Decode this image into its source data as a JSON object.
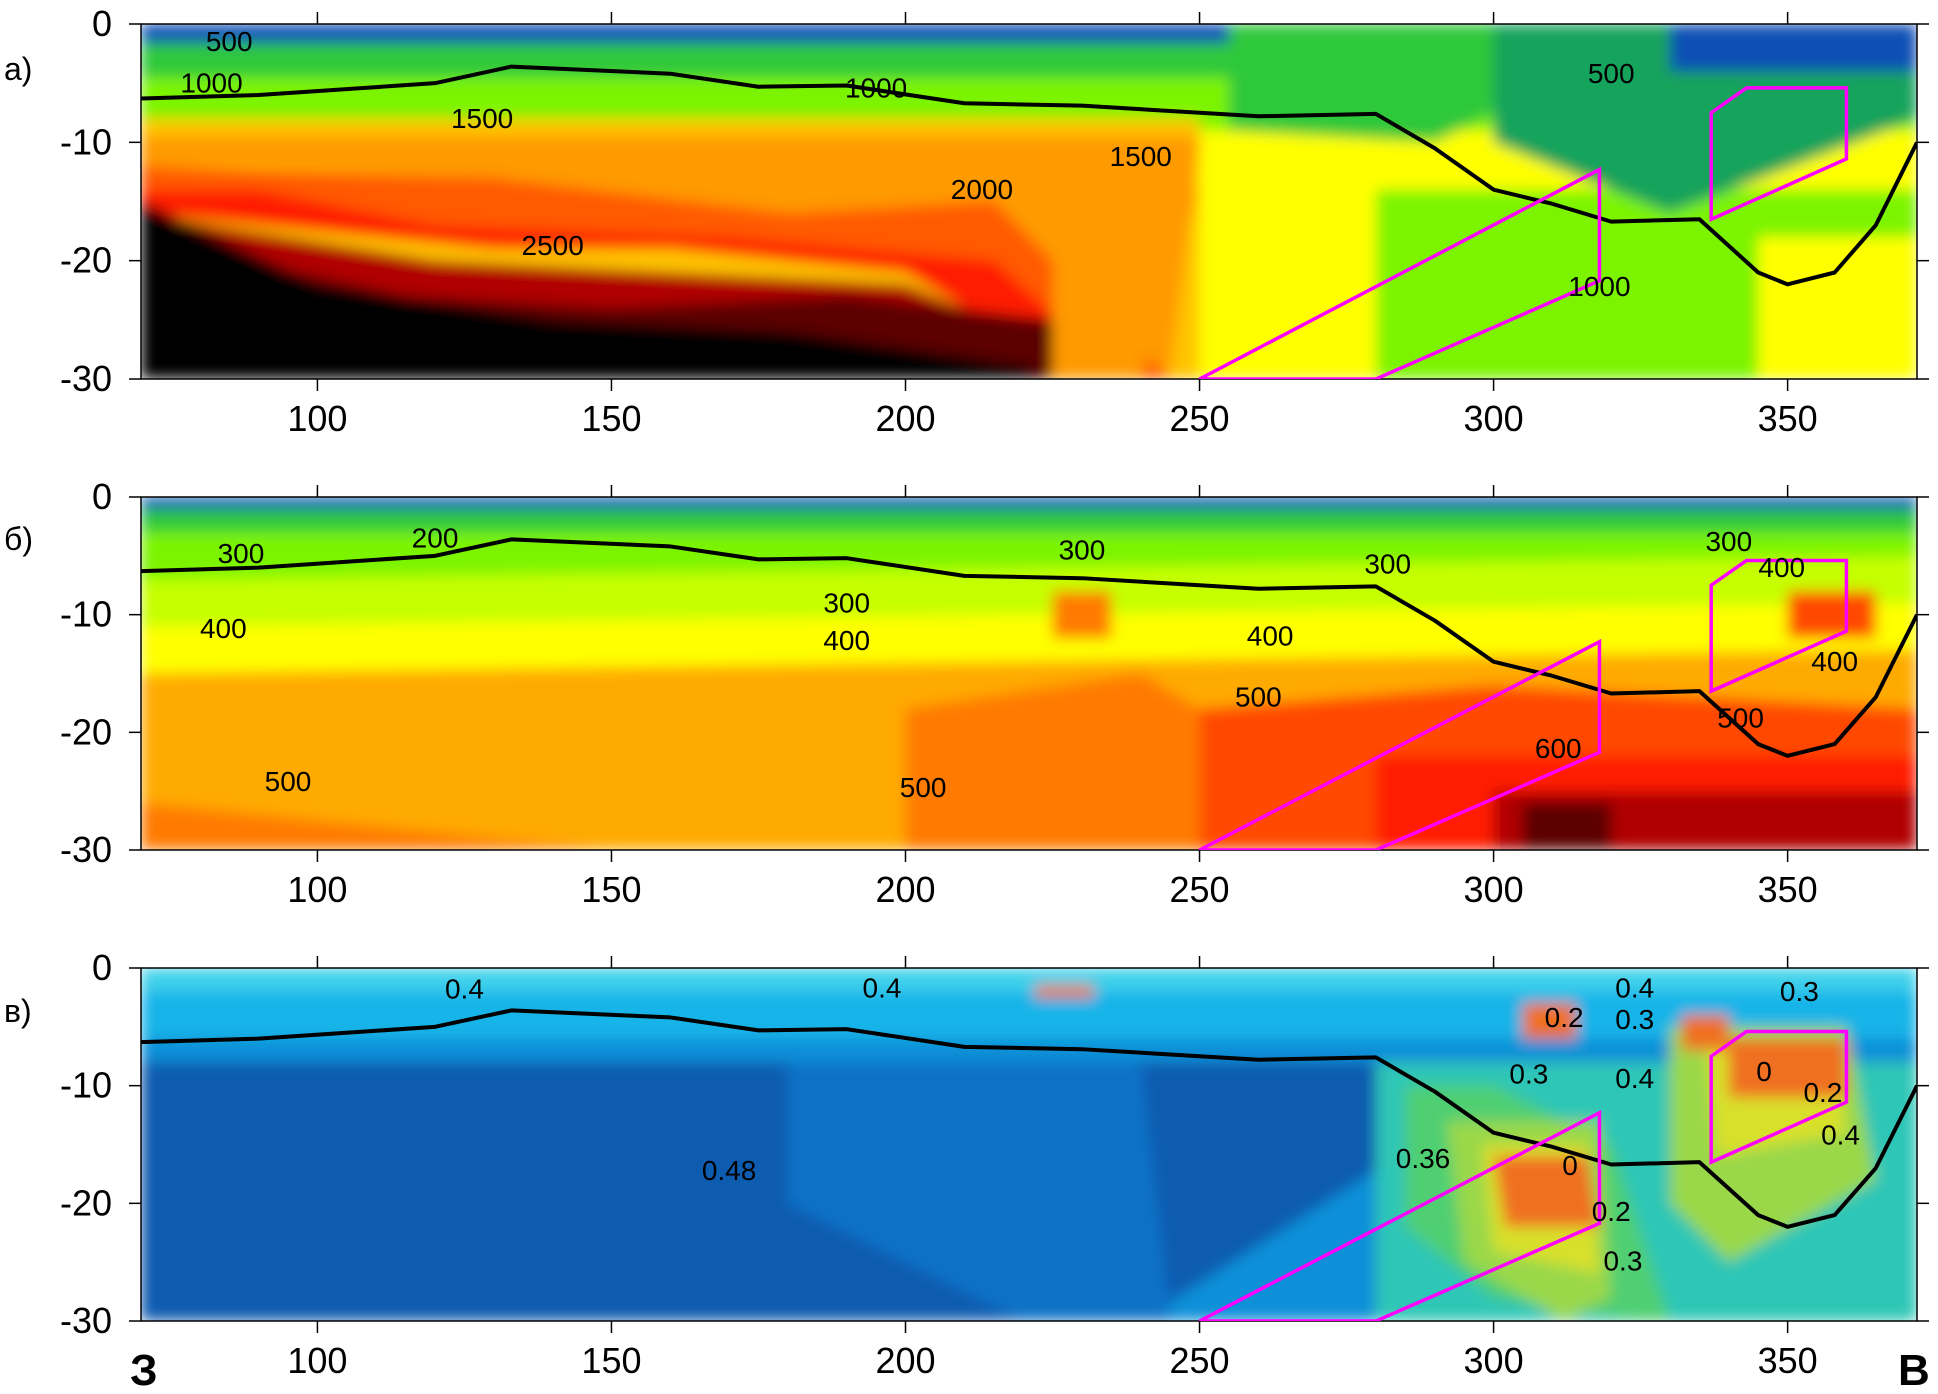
{
  "chart_data": [
    {
      "type": "heatmap",
      "panel_label": "а)",
      "xlim": [
        70,
        372
      ],
      "ylim": [
        -30,
        0
      ],
      "xticks": [
        100,
        150,
        200,
        250,
        300,
        350
      ],
      "yticks": [
        0,
        -10,
        -20,
        -30
      ],
      "contour_labels": [
        {
          "text": "500",
          "x": 85,
          "y": -2.3
        },
        {
          "text": "1000",
          "x": 82,
          "y": -5.8
        },
        {
          "text": "1500",
          "x": 128,
          "y": -8.8
        },
        {
          "text": "2500",
          "x": 140,
          "y": -19.5
        },
        {
          "text": "2000",
          "x": 213,
          "y": -14.8
        },
        {
          "text": "1000",
          "x": 195,
          "y": -6.2
        },
        {
          "text": "1500",
          "x": 240,
          "y": -12
        },
        {
          "text": "500",
          "x": 320,
          "y": -5
        },
        {
          "text": "1000",
          "x": 318,
          "y": -23
        }
      ],
      "color_scale": [
        "#0a4fb5",
        "#18a35c",
        "#2fc83a",
        "#7cf400",
        "#c5ff00",
        "#ffff00",
        "#ffc400",
        "#ff9a00",
        "#ff5a00",
        "#ff1a00",
        "#b00000",
        "#5c0000",
        "#000000"
      ],
      "boundary_line": {
        "x": [
          70,
          90,
          120,
          133,
          160,
          175,
          190,
          210,
          230,
          260,
          280,
          290,
          300,
          310,
          320,
          335,
          345,
          350,
          358,
          365,
          372
        ],
        "y": [
          -6.3,
          -6,
          -5,
          -3.6,
          -4.2,
          -5.3,
          -5.2,
          -6.7,
          -6.9,
          -7.8,
          -7.6,
          -10.5,
          -14,
          -15.2,
          -16.7,
          -16.5,
          -21,
          -22,
          -21,
          -17,
          -10
        ]
      },
      "polygons": [
        {
          "x": [
            250,
            318,
            318,
            280
          ],
          "y": [
            -30,
            -12.3,
            -21.7,
            -30
          ]
        },
        {
          "x": [
            337,
            343,
            360,
            360,
            337
          ],
          "y": [
            -7.5,
            -5.4,
            -5.4,
            -11.4,
            -16.5
          ]
        }
      ]
    },
    {
      "type": "heatmap",
      "panel_label": "б)",
      "xlim": [
        70,
        372
      ],
      "ylim": [
        -30,
        0
      ],
      "xticks": [
        100,
        150,
        200,
        250,
        300,
        350
      ],
      "yticks": [
        0,
        -10,
        -20,
        -30
      ],
      "contour_labels": [
        {
          "text": "300",
          "x": 87,
          "y": -5.6
        },
        {
          "text": "200",
          "x": 120,
          "y": -4.3
        },
        {
          "text": "400",
          "x": 84,
          "y": -12
        },
        {
          "text": "500",
          "x": 95,
          "y": -25
        },
        {
          "text": "300",
          "x": 190,
          "y": -9.8
        },
        {
          "text": "400",
          "x": 190,
          "y": -13
        },
        {
          "text": "500",
          "x": 203,
          "y": -25.5
        },
        {
          "text": "300",
          "x": 230,
          "y": -5.3
        },
        {
          "text": "400",
          "x": 262,
          "y": -12.6
        },
        {
          "text": "500",
          "x": 260,
          "y": -17.8
        },
        {
          "text": "300",
          "x": 282,
          "y": -6.5
        },
        {
          "text": "600",
          "x": 311,
          "y": -22.2
        },
        {
          "text": "300",
          "x": 340,
          "y": -4.6
        },
        {
          "text": "400",
          "x": 349,
          "y": -6.8
        },
        {
          "text": "400",
          "x": 358,
          "y": -14.8
        },
        {
          "text": "500",
          "x": 342,
          "y": -19.6
        }
      ],
      "color_scale": [
        "#0a4fb5",
        "#18a35c",
        "#2fc83a",
        "#7cf400",
        "#c5ff00",
        "#ffff00",
        "#ffc400",
        "#ffaa00",
        "#ff7a00",
        "#ff4a00",
        "#ff1a00",
        "#b00000",
        "#5c0000"
      ],
      "boundary_line": {
        "x": [
          70,
          90,
          120,
          133,
          160,
          175,
          190,
          210,
          230,
          260,
          280,
          290,
          300,
          310,
          320,
          335,
          345,
          350,
          358,
          365,
          372
        ],
        "y": [
          -6.3,
          -6,
          -5,
          -3.6,
          -4.2,
          -5.3,
          -5.2,
          -6.7,
          -6.9,
          -7.8,
          -7.6,
          -10.5,
          -14,
          -15.2,
          -16.7,
          -16.5,
          -21,
          -22,
          -21,
          -17,
          -10
        ]
      },
      "polygons": [
        {
          "x": [
            250,
            318,
            318,
            280
          ],
          "y": [
            -30,
            -12.3,
            -21.7,
            -30
          ]
        },
        {
          "x": [
            337,
            343,
            360,
            360,
            337
          ],
          "y": [
            -7.5,
            -5.4,
            -5.4,
            -11.4,
            -16.5
          ]
        }
      ]
    },
    {
      "type": "heatmap",
      "panel_label": "в)",
      "xlim": [
        70,
        372
      ],
      "ylim": [
        -30,
        0
      ],
      "xticks": [
        100,
        150,
        200,
        250,
        300,
        350
      ],
      "yticks": [
        0,
        -10,
        -20,
        -30
      ],
      "contour_labels": [
        {
          "text": "0.4",
          "x": 125,
          "y": -2.6
        },
        {
          "text": "0.4",
          "x": 196,
          "y": -2.5
        },
        {
          "text": "0.48",
          "x": 170,
          "y": -18
        },
        {
          "text": "0.36",
          "x": 288,
          "y": -17
        },
        {
          "text": "0.3",
          "x": 306,
          "y": -9.8
        },
        {
          "text": "0.2",
          "x": 312,
          "y": -5
        },
        {
          "text": "0.3",
          "x": 324,
          "y": -5.2
        },
        {
          "text": "0.4",
          "x": 324,
          "y": -2.5
        },
        {
          "text": "0.4",
          "x": 324,
          "y": -10.2
        },
        {
          "text": "0",
          "x": 313,
          "y": -17.6
        },
        {
          "text": "0.2",
          "x": 320,
          "y": -21.5
        },
        {
          "text": "0.3",
          "x": 322,
          "y": -25.7
        },
        {
          "text": "0.3",
          "x": 352,
          "y": -2.8
        },
        {
          "text": "0",
          "x": 346,
          "y": -9.6
        },
        {
          "text": "0.2",
          "x": 356,
          "y": -11.4
        },
        {
          "text": "0.4",
          "x": 359,
          "y": -15
        }
      ],
      "color_scale": [
        "#0b5cb0",
        "#0a72c6",
        "#0990d8",
        "#12b4e8",
        "#3cd0ea",
        "#2dc6b6",
        "#4fcf72",
        "#9ad848",
        "#d8e02c",
        "#fff23a",
        "#ffb020",
        "#f07020"
      ],
      "boundary_line": {
        "x": [
          70,
          90,
          120,
          133,
          160,
          175,
          190,
          210,
          230,
          260,
          280,
          290,
          300,
          310,
          320,
          335,
          345,
          350,
          358,
          365,
          372
        ],
        "y": [
          -6.3,
          -6,
          -5,
          -3.6,
          -4.2,
          -5.3,
          -5.2,
          -6.7,
          -6.9,
          -7.8,
          -7.6,
          -10.5,
          -14,
          -15.2,
          -16.7,
          -16.5,
          -21,
          -22,
          -21,
          -17,
          -10
        ]
      },
      "polygons": [
        {
          "x": [
            250,
            318,
            318,
            280
          ],
          "y": [
            -30,
            -12.3,
            -21.7,
            -30
          ]
        },
        {
          "x": [
            337,
            343,
            360,
            360,
            337
          ],
          "y": [
            -7.5,
            -5.4,
            -5.4,
            -11.4,
            -16.5
          ]
        }
      ]
    }
  ],
  "direction_labels": {
    "left": "З",
    "right": "В"
  },
  "style": {
    "boundary_color": "#000000",
    "polygon_color": "#ff00ff"
  }
}
